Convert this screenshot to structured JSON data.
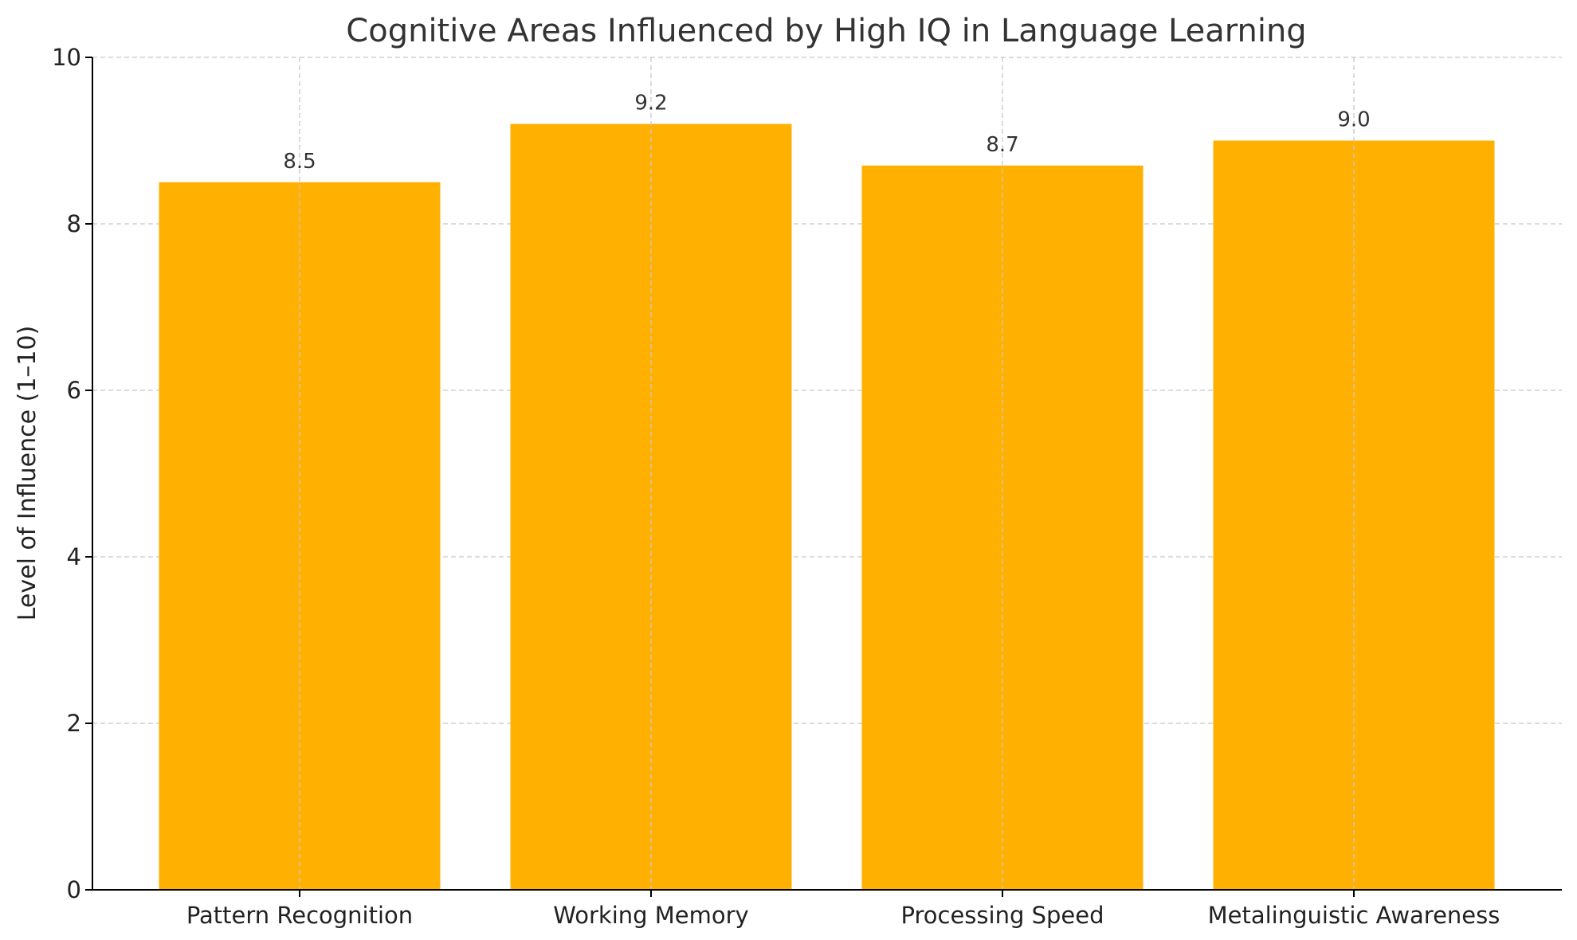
{
  "chart_data": {
    "type": "bar",
    "title": "Cognitive Areas Influenced by High IQ in Language Learning",
    "xlabel": "",
    "ylabel": "Level of Influence (1–10)",
    "categories": [
      "Pattern Recognition",
      "Working Memory",
      "Processing Speed",
      "Metalinguistic Awareness"
    ],
    "values": [
      8.5,
      9.2,
      8.7,
      9.0
    ],
    "value_labels": [
      "8.5",
      "9.2",
      "8.7",
      "9.0"
    ],
    "ylim": [
      0,
      10
    ],
    "yticks": [
      0,
      2,
      4,
      6,
      8,
      10
    ],
    "ytick_labels": [
      "0",
      "2",
      "4",
      "6",
      "8",
      "10"
    ],
    "grid": true,
    "bar_color": "#FFB000"
  }
}
